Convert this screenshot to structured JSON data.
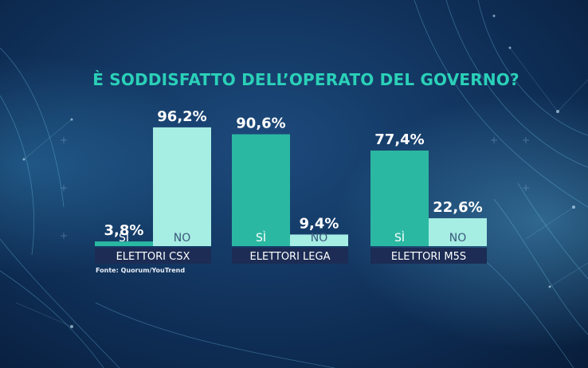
{
  "chart_data": {
    "type": "bar",
    "title": "È SODDISFATTO DELL’OPERATO DEL GOVERNO?",
    "source": "Fonte: Quorum/YouTrend",
    "ylim": [
      0,
      100
    ],
    "colors": {
      "si": "#2bb8a2",
      "no": "#a6ede4",
      "group_label_bg": "#1c2c54",
      "value_label": "#ffffff"
    },
    "groups": [
      {
        "label": "ELETTORI CSX",
        "bars": [
          {
            "label": "SÌ",
            "value": 3.8,
            "value_text": "3,8%"
          },
          {
            "label": "NO",
            "value": 96.2,
            "value_text": "96,2%"
          }
        ]
      },
      {
        "label": "ELETTORI LEGA",
        "bars": [
          {
            "label": "SÌ",
            "value": 90.6,
            "value_text": "90,6%"
          },
          {
            "label": "NO",
            "value": 9.4,
            "value_text": "9,4%"
          }
        ]
      },
      {
        "label": "ELETTORI M5S",
        "bars": [
          {
            "label": "SÌ",
            "value": 77.4,
            "value_text": "77,4%"
          },
          {
            "label": "NO",
            "value": 22.6,
            "value_text": "22,6%"
          }
        ]
      }
    ]
  }
}
